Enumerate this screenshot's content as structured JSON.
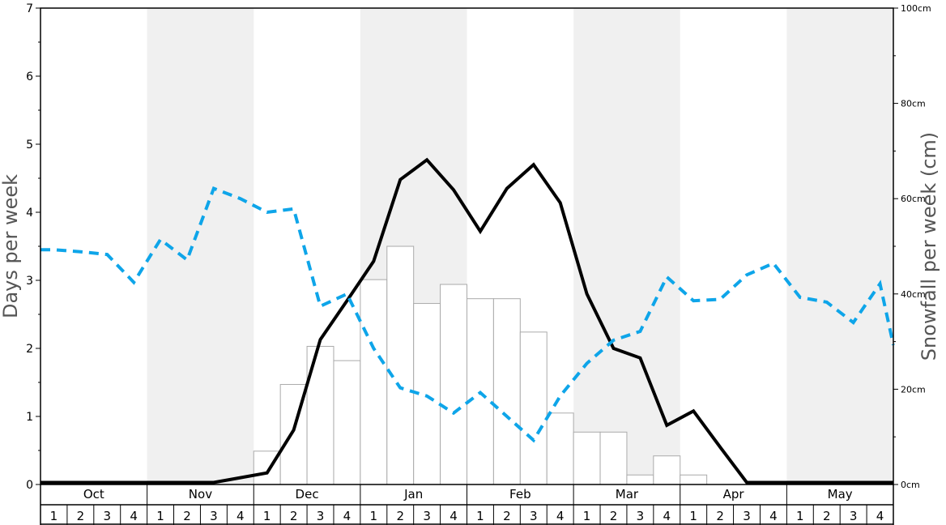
{
  "chart_data": {
    "type": "bar",
    "ylabel_left": "Days per week",
    "ylabel_right": "Snowfall per week (cm)",
    "ylim_left": [
      0,
      7
    ],
    "ylim_right": [
      0,
      100
    ],
    "left_ticks": [
      "0",
      "1",
      "2",
      "3",
      "4",
      "5",
      "6",
      "7"
    ],
    "right_ticks": [
      "0cm",
      "20cm",
      "40cm",
      "60cm",
      "80cm",
      "100cm"
    ],
    "months": [
      "Oct",
      "Nov",
      "Dec",
      "Jan",
      "Feb",
      "Mar",
      "Apr",
      "May"
    ],
    "week_labels": [
      "1",
      "2",
      "3",
      "4"
    ],
    "shaded_months": [
      "Nov",
      "Jan",
      "Mar",
      "May"
    ],
    "colors": {
      "bars_fill": "#ffffff",
      "bars_stroke": "#aaaaaa",
      "solid_line": "#000000",
      "dashed_line": "#0ea5e9",
      "shade": "#f0f0f0"
    },
    "series": [
      {
        "kind": "bars",
        "axis": "right",
        "unit": "cm",
        "values": [
          0,
          0,
          0,
          0,
          0,
          0,
          0,
          0,
          7,
          21,
          29,
          26,
          43,
          50,
          38,
          42,
          39,
          39,
          32,
          15,
          11,
          11,
          2,
          6,
          2,
          0,
          0,
          0,
          0,
          0,
          0,
          0
        ]
      },
      {
        "kind": "solid-line",
        "axis": "left",
        "values": [
          0.03,
          0.03,
          0.03,
          0.03,
          0.03,
          0.03,
          0.03,
          0.1,
          0.17,
          0.8,
          2.13,
          2.7,
          3.28,
          4.48,
          4.77,
          4.33,
          3.72,
          4.35,
          4.7,
          4.14,
          2.8,
          2.0,
          1.86,
          0.87,
          1.08,
          0.55,
          0.03,
          0.03,
          0.03,
          0.03,
          0.03,
          0.03
        ]
      },
      {
        "kind": "dashed-line",
        "axis": "left",
        "values": [
          3.45,
          3.42,
          3.38,
          2.97,
          3.6,
          3.3,
          4.35,
          4.2,
          4.0,
          4.05,
          2.62,
          2.8,
          2.0,
          1.42,
          1.3,
          1.05,
          1.35,
          1.0,
          0.65,
          1.3,
          1.78,
          2.12,
          2.25,
          3.05,
          2.7,
          2.72,
          3.08,
          3.25,
          2.75,
          2.68,
          2.38,
          2.95
        ]
      }
    ]
  }
}
